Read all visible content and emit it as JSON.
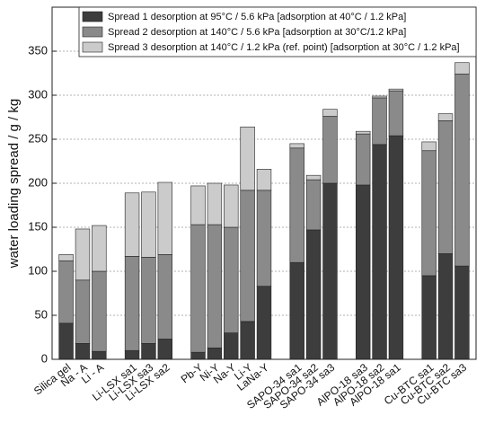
{
  "chart_data": {
    "type": "bar",
    "stacked": true,
    "ylabel": "water loading spread  /  g / kg",
    "categories": [
      "Silica gel",
      "Na - A",
      "Li - A",
      null,
      "Li-LSX sa1",
      "Li-LSX sa3",
      "Li-LSX sa2",
      null,
      "Pb-Y",
      "Ni-Y",
      "Na-Y",
      "Li-Y",
      "LaNa-Y",
      null,
      "SAPO-34 sa1",
      "SAPO-34 sa2",
      "SAPO-34 sa3",
      null,
      "AlPO-18 sa3",
      "AlPO-18 sa2",
      "AlPO-18 sa1",
      null,
      "Cu-BTC sa1",
      "Cu-BTC sa2",
      "Cu-BTC sa3"
    ],
    "series": [
      {
        "name": "Spread 1 desorption at 95°C / 5.6 kPa [adsorption at 40°C / 1.2 kPa]",
        "color": "#3d3d3d",
        "values": [
          41,
          18,
          9,
          null,
          10,
          18,
          23,
          null,
          8,
          13,
          30,
          43,
          83,
          null,
          110,
          147,
          200,
          null,
          198,
          244,
          254,
          null,
          95,
          120,
          106
        ]
      },
      {
        "name": "Spread 2 desorption at 140°C / 5.6 kPa [adsorption at 30°C/1.2 kPa]",
        "color": "#8a8a8a",
        "values": [
          71,
          72,
          91,
          null,
          107,
          98,
          96,
          null,
          145,
          140,
          120,
          149,
          109,
          null,
          130,
          57,
          76,
          null,
          58,
          53,
          51,
          null,
          142,
          151,
          218
        ]
      },
      {
        "name": "Spread 3 desorption at 140°C / 1.2 kPa (ref. point) [adsorption at 30°C / 1.2 kPa]",
        "color": "#cbcbcb",
        "values": [
          7,
          58,
          52,
          null,
          72,
          74,
          82,
          null,
          44,
          47,
          48,
          72,
          24,
          null,
          5,
          5,
          8,
          null,
          3,
          2,
          2,
          null,
          10,
          8,
          13
        ]
      }
    ],
    "ylim": [
      0,
      400
    ],
    "yticks": [
      0,
      50,
      100,
      150,
      200,
      250,
      300,
      350
    ],
    "grid": true,
    "legend": "top"
  }
}
